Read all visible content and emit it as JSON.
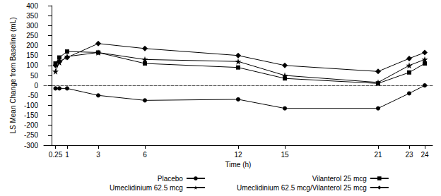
{
  "chart_data": {
    "type": "line",
    "x_label": "Time (h)",
    "y_label": "LS Mean Change from Baseline (mL)",
    "x": [
      0.25,
      0.5,
      1,
      3,
      6,
      12,
      15,
      21,
      23,
      24
    ],
    "series": [
      {
        "name": "Placebo",
        "color": "#000000",
        "marker": "circle",
        "values": [
          -15,
          -15,
          -15,
          -50,
          -75,
          -70,
          -115,
          -115,
          -40,
          0
        ]
      },
      {
        "name": "Vilanterol 25 mcg",
        "color": "#000000",
        "marker": "square",
        "values": [
          110,
          140,
          170,
          165,
          110,
          90,
          35,
          10,
          65,
          110
        ]
      },
      {
        "name": "Umeclidinium 62.5 mcg",
        "color": "#000000",
        "marker": "star",
        "values": [
          70,
          115,
          145,
          165,
          130,
          120,
          50,
          15,
          100,
          130
        ]
      },
      {
        "name": "Umeclidinium 62.5 mcg/Vilanterol 25 mcg",
        "color": "#000000",
        "marker": "diamond",
        "values": [
          100,
          120,
          140,
          210,
          185,
          150,
          100,
          70,
          135,
          165
        ]
      }
    ],
    "xlim": [
      -0.5,
      24.5
    ],
    "xticks": [
      0.25,
      1,
      3,
      6,
      12,
      15,
      21,
      23,
      24
    ],
    "ylim": [
      -300,
      400
    ],
    "yticks": [
      -300,
      -250,
      -200,
      -150,
      -100,
      -50,
      0,
      50,
      100,
      150,
      200,
      250,
      300,
      350,
      400
    ],
    "grid": false,
    "legend": "bottom"
  }
}
